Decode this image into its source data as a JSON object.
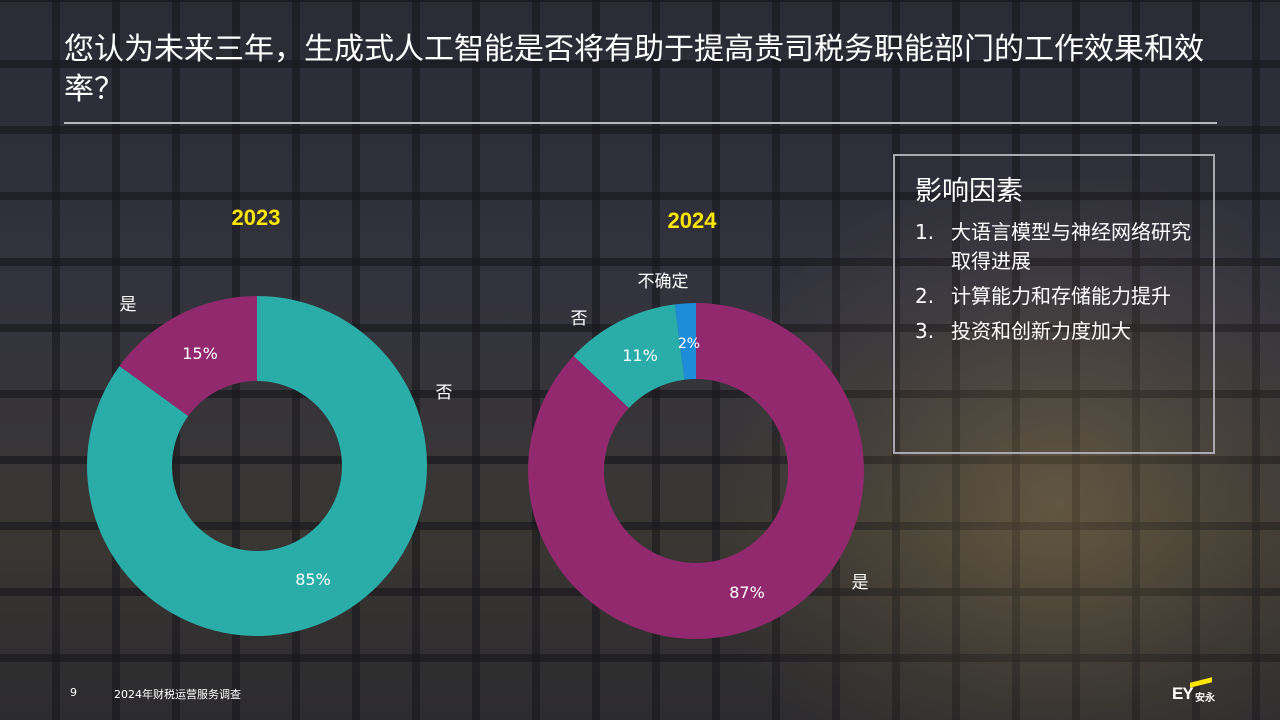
{
  "title": "您认为未来三年，生成式人工智能是否将有助于提高贵司税务职能部门的工作效果和效率？",
  "factors": {
    "heading": "影响因素",
    "items": [
      {
        "num": "1.",
        "text": "大语言模型与神经网络研究取得进展"
      },
      {
        "num": "2.",
        "text": "计算能力和存储能力提升"
      },
      {
        "num": "3.",
        "text": "投资和创新力度加大"
      }
    ]
  },
  "footer": {
    "page": "9",
    "text": "2024年财税运营服务调查",
    "logo_text": "EY",
    "logo_cn": "安永"
  },
  "colors": {
    "teal": "#2aaca8",
    "magenta": "#92286e",
    "blue": "#1e8cd8",
    "year": "#ffe600",
    "accent_logo": "#ffe600"
  },
  "chart_data": [
    {
      "type": "pie",
      "title": "2023",
      "slices": [
        {
          "label": "否",
          "value": 85,
          "value_label": "85%",
          "color": "#2aaca8"
        },
        {
          "label": "是",
          "value": 15,
          "value_label": "15%",
          "color": "#92286e"
        }
      ]
    },
    {
      "type": "pie",
      "title": "2024",
      "slices": [
        {
          "label": "是",
          "value": 87,
          "value_label": "87%",
          "color": "#92286e"
        },
        {
          "label": "否",
          "value": 11,
          "value_label": "11%",
          "color": "#2aaca8"
        },
        {
          "label": "不确定",
          "value": 2,
          "value_label": "2%",
          "color": "#1e8cd8"
        }
      ]
    }
  ]
}
